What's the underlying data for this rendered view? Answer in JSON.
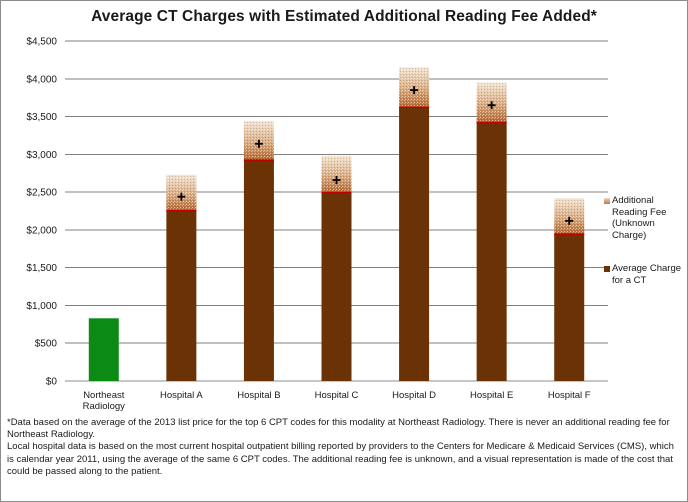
{
  "chart_data": {
    "type": "bar",
    "title": "Average CT Charges with Estimated Additional Reading Fee Added*",
    "xlabel": "",
    "ylabel": "",
    "ylim": [
      0,
      4500
    ],
    "ytick_values": [
      0,
      500,
      1000,
      1500,
      2000,
      2500,
      3000,
      3500,
      4000,
      4500
    ],
    "ytick_labels": [
      "$0",
      "$500",
      "$1,000",
      "$1,500",
      "$2,000",
      "$2,500",
      "$3,000",
      "$3,500",
      "$4,000",
      "$4,500"
    ],
    "grid": true,
    "categories": [
      "Northeast Radiology",
      "Hospital A",
      "Hospital B",
      "Hospital C",
      "Hospital D",
      "Hospital E",
      "Hospital F"
    ],
    "category_lines": [
      [
        "Northeast",
        "Radiology"
      ],
      [
        "Hospital A"
      ],
      [
        "Hospital B"
      ],
      [
        "Hospital C"
      ],
      [
        "Hospital D"
      ],
      [
        "Hospital E"
      ],
      [
        "Hospital F"
      ]
    ],
    "series": [
      {
        "name": "Average Charge for a CT",
        "values": [
          830,
          2260,
          2930,
          2500,
          3630,
          3430,
          1950
        ]
      },
      {
        "name": "Additional Reading Fee (Unknown Charge)",
        "values": [
          0,
          470,
          510,
          480,
          520,
          520,
          470
        ]
      }
    ],
    "markers": [
      null,
      2440,
      3140,
      2660,
      3850,
      3650,
      2120
    ],
    "marker_symbol": "+",
    "legend_position": "right",
    "colors": {
      "charge": "#6b3205",
      "northeast": "#0c8a16",
      "fee_top": "#e3c8a7",
      "fee_bottom": "#b9703b",
      "accent_line": "#c00000",
      "grid": "#808080"
    }
  },
  "legend": {
    "fee_lines": [
      "Additional",
      "Reading Fee",
      "(Unknown",
      "Charge)"
    ],
    "charge_lines": [
      "Average Charge",
      "for a CT"
    ]
  },
  "footnote": {
    "line1": "*Data based on the average of the 2013 list price for the top 6 CPT codes for this modality at Northeast Radiology.  There is never an additional reading fee for Northeast Radiology.",
    "line2": "Local hospital data is based on the most current hospital outpatient billing reported by providers to the Centers for Medicare & Medicaid Services (CMS), which is calendar year 2011, using the average of the same 6 CPT codes.  The additional reading fee is unknown, and a visual representation is made of the cost that could be passed along to the patient."
  }
}
